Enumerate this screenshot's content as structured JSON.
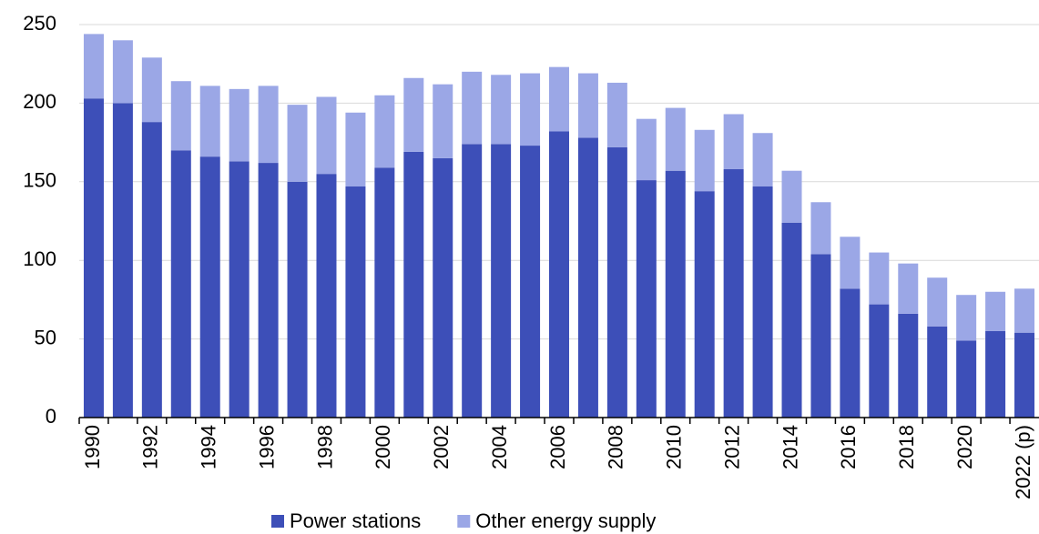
{
  "chart_data": {
    "type": "stacked-bar",
    "categories": [
      "1990",
      null,
      "1992",
      null,
      "1994",
      null,
      "1996",
      null,
      "1998",
      null,
      "2000",
      null,
      "2002",
      null,
      "2004",
      null,
      "2006",
      null,
      "2008",
      null,
      "2010",
      null,
      "2012",
      null,
      "2014",
      null,
      "2016",
      null,
      "2018",
      null,
      "2020",
      null,
      "2022 (p)"
    ],
    "series": [
      {
        "name": "Power stations",
        "color": "#3d4fb8",
        "values": [
          203,
          200,
          188,
          170,
          166,
          163,
          162,
          150,
          155,
          147,
          159,
          169,
          165,
          174,
          174,
          173,
          182,
          178,
          172,
          151,
          157,
          144,
          158,
          147,
          124,
          104,
          82,
          72,
          66,
          58,
          49,
          55,
          54
        ]
      },
      {
        "name": "Other energy supply",
        "color": "#9ba7e6",
        "values": [
          41,
          40,
          41,
          44,
          45,
          46,
          49,
          49,
          49,
          47,
          46,
          47,
          47,
          46,
          44,
          46,
          41,
          41,
          41,
          39,
          40,
          39,
          35,
          34,
          33,
          33,
          33,
          33,
          32,
          31,
          29,
          25,
          28
        ]
      }
    ],
    "ylim": [
      0,
      250
    ],
    "yticks": [
      0,
      50,
      100,
      150,
      200,
      250
    ],
    "grid": true,
    "legend": "bottom"
  }
}
